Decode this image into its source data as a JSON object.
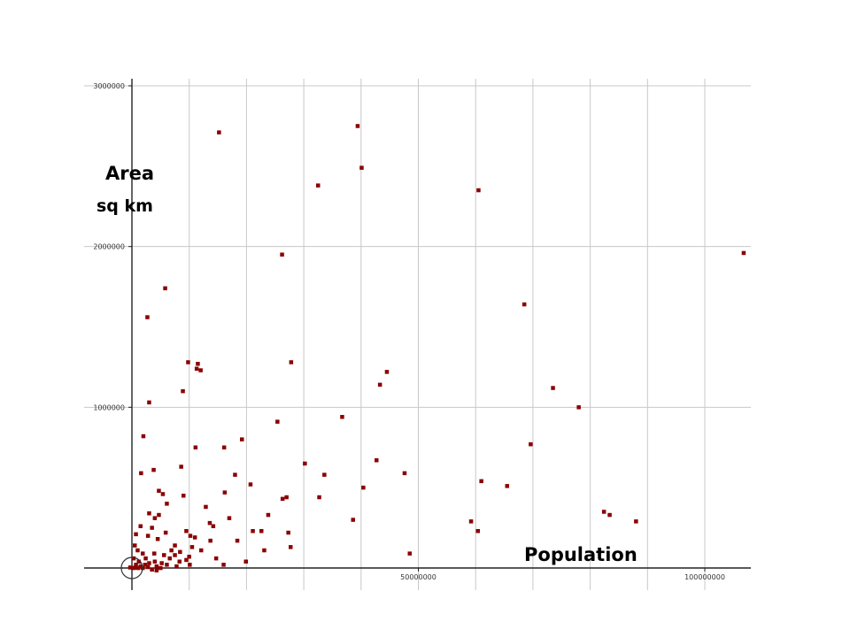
{
  "chart_data": {
    "type": "scatter",
    "ylabel": "Area",
    "ylabel_unit": "sq km",
    "xlabel": "Population",
    "xlim": [
      -8000000,
      108000000
    ],
    "ylim": [
      -100000,
      3000000
    ],
    "x_ticks": [
      50000000,
      100000000
    ],
    "x_tick_labels": [
      "50000000",
      "100000000"
    ],
    "y_ticks": [
      1000000,
      2000000,
      3000000
    ],
    "y_tick_labels": [
      "1000000",
      "2000000",
      "3000000"
    ],
    "grid": true,
    "point_color": "#8b0000",
    "points": [
      [
        15200000,
        2710000
      ],
      [
        39400000,
        2750000
      ],
      [
        40100000,
        2490000
      ],
      [
        32500000,
        2380000
      ],
      [
        60500000,
        2350000
      ],
      [
        106800000,
        1960000
      ],
      [
        26200000,
        1950000
      ],
      [
        5800000,
        1740000
      ],
      [
        68500000,
        1640000
      ],
      [
        2700000,
        1560000
      ],
      [
        9800000,
        1280000
      ],
      [
        11500000,
        1270000
      ],
      [
        11300000,
        1240000
      ],
      [
        12000000,
        1230000
      ],
      [
        27800000,
        1280000
      ],
      [
        44500000,
        1220000
      ],
      [
        43300000,
        1140000
      ],
      [
        73500000,
        1120000
      ],
      [
        8900000,
        1100000
      ],
      [
        3000000,
        1030000
      ],
      [
        78000000,
        1000000
      ],
      [
        36700000,
        940000
      ],
      [
        25400000,
        910000
      ],
      [
        2000000,
        820000
      ],
      [
        19200000,
        800000
      ],
      [
        11100000,
        750000
      ],
      [
        16100000,
        750000
      ],
      [
        69600000,
        770000
      ],
      [
        30200000,
        650000
      ],
      [
        42700000,
        670000
      ],
      [
        3800000,
        610000
      ],
      [
        8600000,
        630000
      ],
      [
        1600000,
        590000
      ],
      [
        18000000,
        580000
      ],
      [
        33600000,
        580000
      ],
      [
        47600000,
        590000
      ],
      [
        61000000,
        540000
      ],
      [
        20700000,
        520000
      ],
      [
        65500000,
        510000
      ],
      [
        40400000,
        500000
      ],
      [
        4700000,
        480000
      ],
      [
        5400000,
        460000
      ],
      [
        16200000,
        470000
      ],
      [
        26300000,
        430000
      ],
      [
        27000000,
        440000
      ],
      [
        32700000,
        440000
      ],
      [
        9000000,
        450000
      ],
      [
        6100000,
        400000
      ],
      [
        12900000,
        380000
      ],
      [
        82400000,
        350000
      ],
      [
        83400000,
        330000
      ],
      [
        3000000,
        340000
      ],
      [
        4700000,
        330000
      ],
      [
        4000000,
        310000
      ],
      [
        23800000,
        330000
      ],
      [
        17000000,
        310000
      ],
      [
        38600000,
        300000
      ],
      [
        59200000,
        290000
      ],
      [
        88000000,
        290000
      ],
      [
        13600000,
        280000
      ],
      [
        1500000,
        260000
      ],
      [
        14200000,
        260000
      ],
      [
        3500000,
        250000
      ],
      [
        21100000,
        230000
      ],
      [
        22600000,
        230000
      ],
      [
        9500000,
        230000
      ],
      [
        27300000,
        220000
      ],
      [
        5900000,
        220000
      ],
      [
        60400000,
        230000
      ],
      [
        700000,
        210000
      ],
      [
        2800000,
        200000
      ],
      [
        10200000,
        200000
      ],
      [
        11000000,
        190000
      ],
      [
        4500000,
        180000
      ],
      [
        18400000,
        170000
      ],
      [
        13700000,
        170000
      ],
      [
        500000,
        140000
      ],
      [
        7500000,
        140000
      ],
      [
        10500000,
        130000
      ],
      [
        27700000,
        130000
      ],
      [
        1000000,
        110000
      ],
      [
        6900000,
        110000
      ],
      [
        8400000,
        100000
      ],
      [
        12100000,
        110000
      ],
      [
        23100000,
        110000
      ],
      [
        1900000,
        90000
      ],
      [
        3900000,
        90000
      ],
      [
        5600000,
        80000
      ],
      [
        48500000,
        90000
      ],
      [
        7500000,
        80000
      ],
      [
        10000000,
        70000
      ],
      [
        14700000,
        60000
      ],
      [
        300000,
        60000
      ],
      [
        2400000,
        60000
      ],
      [
        6600000,
        60000
      ],
      [
        9500000,
        50000
      ],
      [
        4000000,
        40000
      ],
      [
        19900000,
        40000
      ],
      [
        1200000,
        40000
      ],
      [
        8300000,
        40000
      ],
      [
        3000000,
        30000
      ],
      [
        5200000,
        30000
      ],
      [
        16000000,
        20000
      ],
      [
        700000,
        20000
      ],
      [
        2300000,
        20000
      ],
      [
        6100000,
        20000
      ],
      [
        10100000,
        20000
      ],
      [
        1500000,
        10000
      ],
      [
        4300000,
        10000
      ],
      [
        7800000,
        10000
      ],
      [
        300000,
        0
      ],
      [
        1100000,
        0
      ],
      [
        1900000,
        0
      ],
      [
        2800000,
        5000
      ],
      [
        3500000,
        -10000
      ],
      [
        4300000,
        -15000
      ],
      [
        5000000,
        0
      ],
      [
        600000,
        2000
      ],
      [
        200000,
        1000
      ],
      [
        -300000,
        3000
      ]
    ]
  },
  "origin_marker": "circle-icon"
}
